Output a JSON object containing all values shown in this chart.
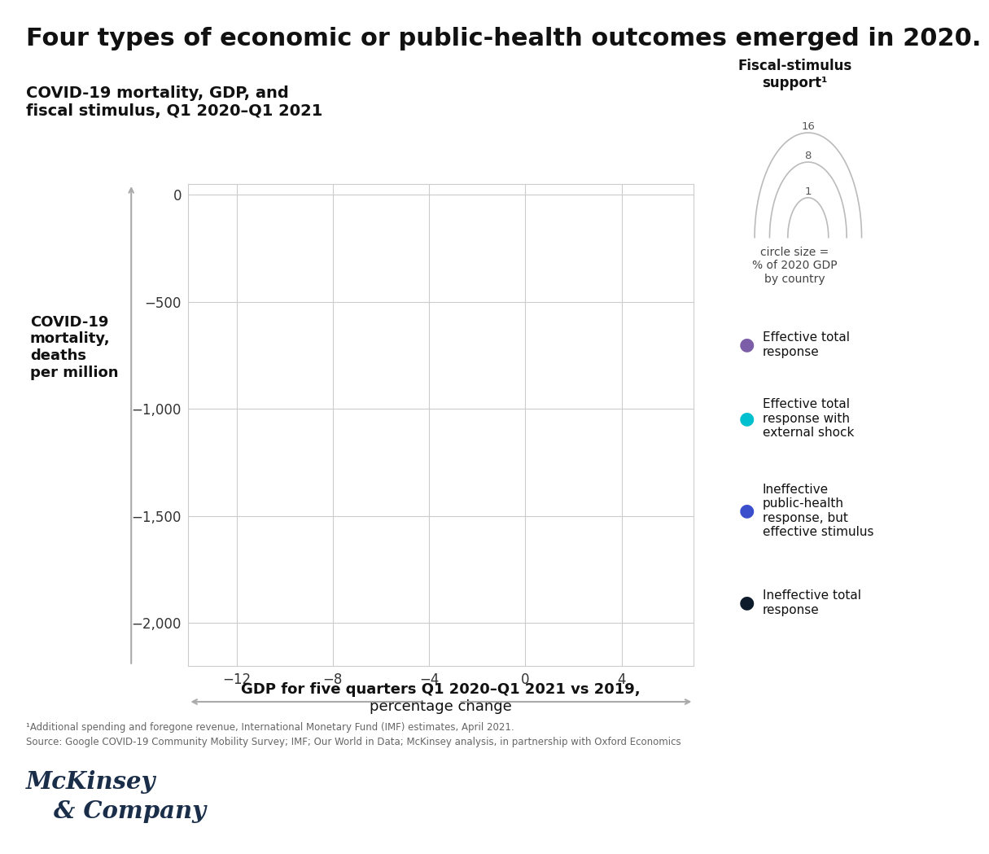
{
  "title": "Four types of economic or public-health outcomes emerged in 2020.",
  "subtitle": "COVID-19 mortality, GDP, and\nfiscal stimulus, Q1 2020–Q1 2021",
  "xlabel_line1": "GDP for five quarters Q1 2020–Q1 2021 vs 2019,",
  "xlabel_line2": "percentage change",
  "ylabel_line1": "COVID-19",
  "ylabel_line2": "mortality,",
  "ylabel_line3": "deaths",
  "ylabel_line4": "per million",
  "xlim": [
    -14,
    7
  ],
  "ylim": [
    -2200,
    50
  ],
  "xticks": [
    -12,
    -8,
    -4,
    0,
    4
  ],
  "yticks": [
    0,
    -500,
    -1000,
    -1500,
    -2000
  ],
  "xtick_labels": [
    "−12",
    "−8",
    "−4",
    "0",
    "4"
  ],
  "ytick_labels": [
    "0",
    "−500",
    "−1,000",
    "−1,500",
    "−2,000"
  ],
  "background_color": "#ffffff",
  "grid_color": "#cccccc",
  "title_fontsize": 22,
  "subtitle_fontsize": 14,
  "axis_label_fontsize": 13,
  "tick_fontsize": 12,
  "footnote1": "¹Additional spending and foregone revenue, International Monetary Fund (IMF) estimates, April 2021.",
  "footnote2": "Source: Google COVID-19 Community Mobility Survey; IMF; Our World in Data; McKinsey analysis, in partnership with Oxford Economics",
  "legend_title": "Fiscal-stimulus\nsupport¹",
  "legend_circles": [
    16,
    8,
    1
  ],
  "legend_arc_radii": [
    1.0,
    0.72,
    0.38
  ],
  "legend_circle_label": "circle size =\n% of 2020 GDP\nby country",
  "categories": [
    {
      "label": "Effective total\nresponse",
      "color": "#7B5EA7"
    },
    {
      "label": "Effective total\nresponse with\nexternal shock",
      "color": "#00BFCF"
    },
    {
      "label": "Ineffective\npublic-health\nresponse, but\neffective stimulus",
      "color": "#3B4FCC"
    },
    {
      "label": "Ineffective total\nresponse",
      "color": "#0D1B2A"
    }
  ],
  "mckinsey_color": "#1a2e4a",
  "arrow_color": "#aaaaaa"
}
